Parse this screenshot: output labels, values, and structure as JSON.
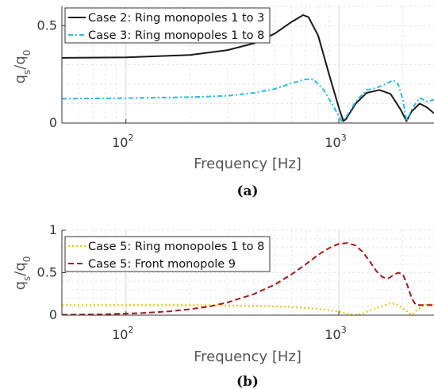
{
  "chart_data": [
    {
      "type": "line",
      "caption": "(a)",
      "xlabel": "Frequency [Hz]",
      "ylabel": "q_s/q_0",
      "xscale": "log",
      "xlim": [
        50,
        2800
      ],
      "ylim": [
        0,
        0.6
      ],
      "xticks": [
        {
          "base": "10",
          "exp": "2",
          "value": 100
        },
        {
          "base": "10",
          "exp": "3",
          "value": 1000
        }
      ],
      "yticks": [
        {
          "label": "0",
          "value": 0
        },
        {
          "label": "0.5",
          "value": 0.5
        }
      ],
      "grid": true,
      "legend_position": "top-left",
      "series": [
        {
          "name": "Case 2: Ring monopoles 1 to 3",
          "color": "#1a1a1a",
          "dash": "solid",
          "points": [
            [
              50,
              0.335
            ],
            [
              100,
              0.338
            ],
            [
              200,
              0.35
            ],
            [
              300,
              0.375
            ],
            [
              400,
              0.41
            ],
            [
              500,
              0.46
            ],
            [
              600,
              0.52
            ],
            [
              680,
              0.555
            ],
            [
              720,
              0.545
            ],
            [
              800,
              0.45
            ],
            [
              900,
              0.25
            ],
            [
              1000,
              0.08
            ],
            [
              1050,
              0.01
            ],
            [
              1080,
              0.02
            ],
            [
              1200,
              0.1
            ],
            [
              1350,
              0.155
            ],
            [
              1550,
              0.17
            ],
            [
              1750,
              0.15
            ],
            [
              1950,
              0.07
            ],
            [
              2080,
              0.01
            ],
            [
              2200,
              0.06
            ],
            [
              2400,
              0.1
            ],
            [
              2600,
              0.08
            ],
            [
              2800,
              0.05
            ]
          ]
        },
        {
          "name": "Case 3: Ring monopoles 1 to 8",
          "color": "#2eb8e6",
          "dash": "6,3,2,3",
          "points": [
            [
              50,
              0.125
            ],
            [
              100,
              0.128
            ],
            [
              200,
              0.133
            ],
            [
              300,
              0.14
            ],
            [
              400,
              0.155
            ],
            [
              500,
              0.175
            ],
            [
              600,
              0.205
            ],
            [
              700,
              0.225
            ],
            [
              760,
              0.225
            ],
            [
              850,
              0.17
            ],
            [
              950,
              0.08
            ],
            [
              1030,
              0.01
            ],
            [
              1080,
              0.03
            ],
            [
              1200,
              0.11
            ],
            [
              1350,
              0.17
            ],
            [
              1500,
              0.18
            ],
            [
              1650,
              0.2
            ],
            [
              1800,
              0.22
            ],
            [
              1900,
              0.2
            ],
            [
              2000,
              0.12
            ],
            [
              2080,
              0.01
            ],
            [
              2200,
              0.07
            ],
            [
              2400,
              0.13
            ],
            [
              2600,
              0.11
            ],
            [
              2800,
              0.12
            ]
          ]
        }
      ]
    },
    {
      "type": "line",
      "caption": "(b)",
      "xlabel": "Frequency [Hz]",
      "ylabel": "q_s/q_0",
      "xscale": "log",
      "xlim": [
        50,
        2800
      ],
      "ylim": [
        0,
        1
      ],
      "xticks": [
        {
          "base": "10",
          "exp": "2",
          "value": 100
        },
        {
          "base": "10",
          "exp": "3",
          "value": 1000
        }
      ],
      "yticks": [
        {
          "label": "0",
          "value": 0
        },
        {
          "label": "0.5",
          "value": 0.5
        },
        {
          "label": "1",
          "value": 1
        }
      ],
      "grid": true,
      "legend_position": "top-left",
      "series": [
        {
          "name": "Case 5: Ring monopoles 1 to 8",
          "color": "#e6c800",
          "dash": "2,3",
          "points": [
            [
              50,
              0.12
            ],
            [
              100,
              0.12
            ],
            [
              200,
              0.12
            ],
            [
              300,
              0.115
            ],
            [
              400,
              0.11
            ],
            [
              500,
              0.105
            ],
            [
              600,
              0.095
            ],
            [
              700,
              0.085
            ],
            [
              800,
              0.075
            ],
            [
              900,
              0.06
            ],
            [
              1000,
              0.04
            ],
            [
              1100,
              0.02
            ],
            [
              1200,
              0.005
            ],
            [
              1300,
              0.02
            ],
            [
              1450,
              0.07
            ],
            [
              1600,
              0.11
            ],
            [
              1750,
              0.14
            ],
            [
              1900,
              0.12
            ],
            [
              2050,
              0.06
            ],
            [
              2200,
              0.005
            ],
            [
              2350,
              0.07
            ],
            [
              2500,
              0.12
            ],
            [
              2650,
              0.13
            ],
            [
              2800,
              0.12
            ]
          ]
        },
        {
          "name": "Case 5: Front monopole 9",
          "color": "#a01818",
          "dash": "7,4",
          "points": [
            [
              50,
              0.005
            ],
            [
              80,
              0.01
            ],
            [
              120,
              0.025
            ],
            [
              160,
              0.045
            ],
            [
              200,
              0.07
            ],
            [
              250,
              0.105
            ],
            [
              300,
              0.15
            ],
            [
              400,
              0.25
            ],
            [
              500,
              0.36
            ],
            [
              600,
              0.48
            ],
            [
              700,
              0.6
            ],
            [
              800,
              0.71
            ],
            [
              900,
              0.79
            ],
            [
              1000,
              0.84
            ],
            [
              1100,
              0.85
            ],
            [
              1200,
              0.82
            ],
            [
              1300,
              0.74
            ],
            [
              1400,
              0.63
            ],
            [
              1500,
              0.52
            ],
            [
              1600,
              0.45
            ],
            [
              1700,
              0.43
            ],
            [
              1800,
              0.47
            ],
            [
              1900,
              0.5
            ],
            [
              2000,
              0.48
            ],
            [
              2100,
              0.35
            ],
            [
              2200,
              0.2
            ],
            [
              2300,
              0.12
            ],
            [
              2500,
              0.12
            ],
            [
              2800,
              0.12
            ]
          ]
        }
      ]
    }
  ]
}
